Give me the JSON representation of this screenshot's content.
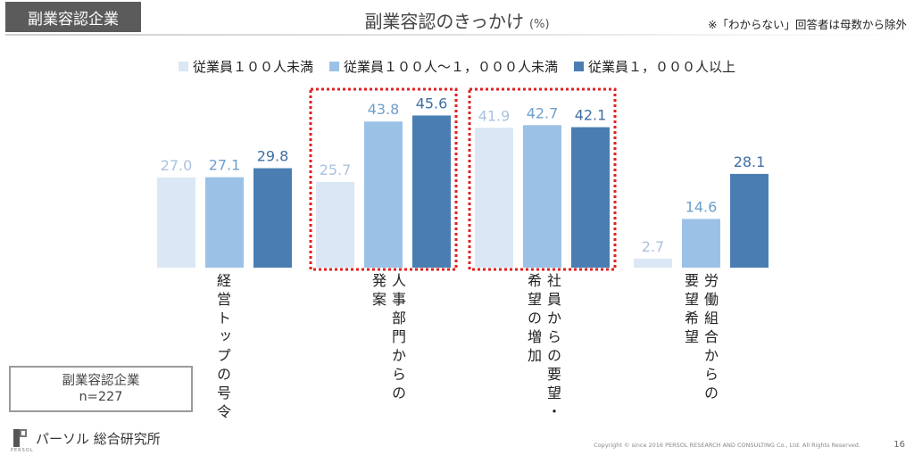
{
  "header": {
    "tag": "副業容認企業",
    "title": "副業容認のきっかけ",
    "unit": "(%)",
    "note": "※「わからない」回答者は母数から除外"
  },
  "chart_data": {
    "type": "bar",
    "title": "副業容認のきっかけ",
    "unit": "(%)",
    "categories": [
      "経営トップの号令",
      "人事部門からの発案",
      "社員からの要望・希望の増加",
      "労働組合からの要望希望"
    ],
    "category_label_columns": [
      [
        "経営トップの号令"
      ],
      [
        "人事部門からの",
        "発案"
      ],
      [
        "社員からの要望・",
        "希望の増加"
      ],
      [
        "労働組合からの",
        "要望希望"
      ]
    ],
    "series": [
      {
        "name": "従業員１００人未満",
        "color": "#dbe7f4",
        "label_color": "#a9c2df",
        "values": [
          27.0,
          25.7,
          41.9,
          2.7
        ]
      },
      {
        "name": "従業員１００人～１，０００人未満",
        "color": "#9bc2e6",
        "label_color": "#6e9fcd",
        "values": [
          27.1,
          43.8,
          42.7,
          14.6
        ]
      },
      {
        "name": "従業員１，０００人以上",
        "color": "#4a7eb2",
        "label_color": "#3f6fa3",
        "values": [
          29.8,
          45.6,
          42.1,
          28.1
        ]
      }
    ],
    "ylim": [
      0,
      50
    ],
    "grid": false,
    "legend_position": "top",
    "highlighted_categories": [
      1,
      2
    ]
  },
  "info_box": {
    "line1": "副業容認企業",
    "line2": "n=227"
  },
  "footer": {
    "logo_text": "パーソル 総合研究所",
    "logo_small": "PERSOL",
    "copyright": "Copyright © since 2016  PERSOL  RESEARCH AND CONSULTING  Co., Ltd. All Rights Reserved.",
    "page_number": "16"
  }
}
